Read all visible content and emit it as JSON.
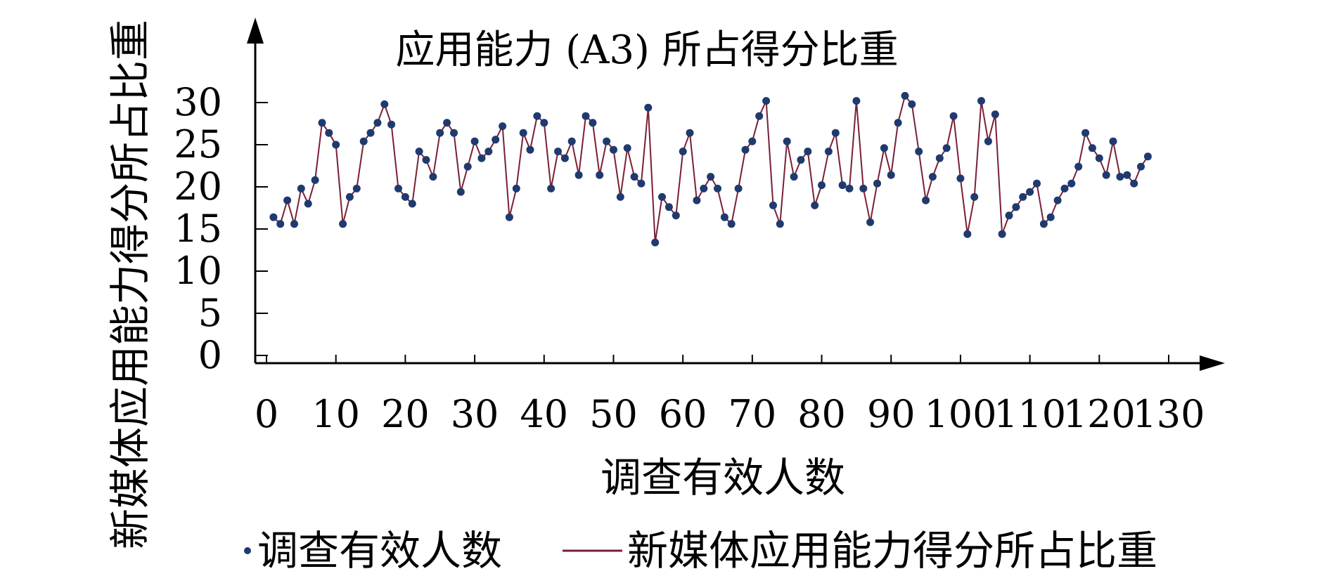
{
  "chart_data": {
    "type": "line",
    "title": "应用能力 (A3) 所占得分比重",
    "xlabel": "调查有效人数",
    "ylabel": "新媒体应用能力得分所占比重",
    "xlim": [
      0,
      130
    ],
    "ylim": [
      0,
      30
    ],
    "x_ticks": [
      "0",
      "10",
      "20",
      "30",
      "40",
      "50",
      "60",
      "70",
      "80",
      "90",
      "100",
      "110",
      "120",
      "130"
    ],
    "y_ticks": [
      "0",
      "5",
      "10",
      "15",
      "20",
      "25",
      "30"
    ],
    "grid": false,
    "legend": {
      "placement": "bottom",
      "entries": [
        "调查有效人数",
        "新媒体应用能力得分所占比重"
      ]
    },
    "series": [
      {
        "name": "新媒体应用能力得分所占比重",
        "line_color": "#7a1f35",
        "marker_color": "#1f3a6e",
        "x": [
          1,
          2,
          3,
          4,
          5,
          6,
          7,
          8,
          9,
          10,
          11,
          12,
          13,
          14,
          15,
          16,
          17,
          18,
          19,
          20,
          21,
          22,
          23,
          24,
          25,
          26,
          27,
          28,
          29,
          30,
          31,
          32,
          33,
          34,
          35,
          36,
          37,
          38,
          39,
          40,
          41,
          42,
          43,
          44,
          45,
          46,
          47,
          48,
          49,
          50,
          51,
          52,
          53,
          54,
          55,
          56,
          57,
          58,
          59,
          60,
          61,
          62,
          63,
          64,
          65,
          66,
          67,
          68,
          69,
          70,
          71,
          72,
          73,
          74,
          75,
          76,
          77,
          78,
          79,
          80,
          81,
          82,
          83,
          84,
          85,
          86,
          87,
          88,
          89,
          90,
          91,
          92,
          93,
          94,
          95,
          96,
          97,
          98,
          99,
          100,
          101,
          102,
          103,
          104,
          105,
          106,
          107,
          108,
          109,
          110,
          111,
          112,
          113,
          114,
          115,
          116,
          117,
          118,
          119,
          120,
          121,
          122,
          123,
          124,
          125,
          126,
          127
        ],
        "y": [
          16.4,
          15.6,
          18.4,
          15.6,
          19.8,
          18.0,
          20.8,
          27.6,
          26.4,
          25.0,
          15.6,
          18.8,
          19.8,
          25.4,
          26.4,
          27.6,
          29.8,
          27.4,
          19.8,
          18.8,
          18.0,
          24.2,
          23.2,
          21.2,
          26.4,
          27.6,
          26.4,
          19.4,
          22.4,
          25.4,
          23.4,
          24.2,
          25.6,
          27.2,
          16.4,
          19.8,
          26.4,
          24.4,
          28.4,
          27.6,
          19.8,
          24.2,
          23.4,
          25.4,
          21.4,
          28.4,
          27.6,
          21.4,
          25.4,
          24.4,
          18.8,
          24.6,
          21.2,
          20.4,
          29.4,
          13.4,
          18.8,
          17.6,
          16.6,
          24.2,
          26.4,
          18.4,
          19.8,
          21.2,
          19.8,
          16.4,
          15.6,
          19.8,
          24.4,
          25.4,
          28.4,
          30.2,
          17.8,
          15.6,
          25.4,
          21.2,
          23.2,
          24.2,
          17.8,
          20.2,
          24.2,
          26.4,
          20.2,
          19.8,
          30.2,
          19.8,
          15.8,
          20.4,
          24.6,
          21.4,
          27.6,
          30.8,
          29.8,
          24.2,
          18.4,
          21.2,
          23.4,
          24.6,
          28.4,
          21.0,
          14.4,
          18.8,
          30.2,
          25.4,
          28.6,
          14.4,
          16.6,
          17.6,
          18.8,
          19.4,
          20.4,
          15.6,
          16.4,
          18.4,
          19.8,
          20.4,
          22.4,
          26.4,
          24.6,
          23.4,
          21.4,
          25.4,
          21.2,
          21.4,
          20.4,
          22.4,
          23.6
        ]
      }
    ]
  }
}
